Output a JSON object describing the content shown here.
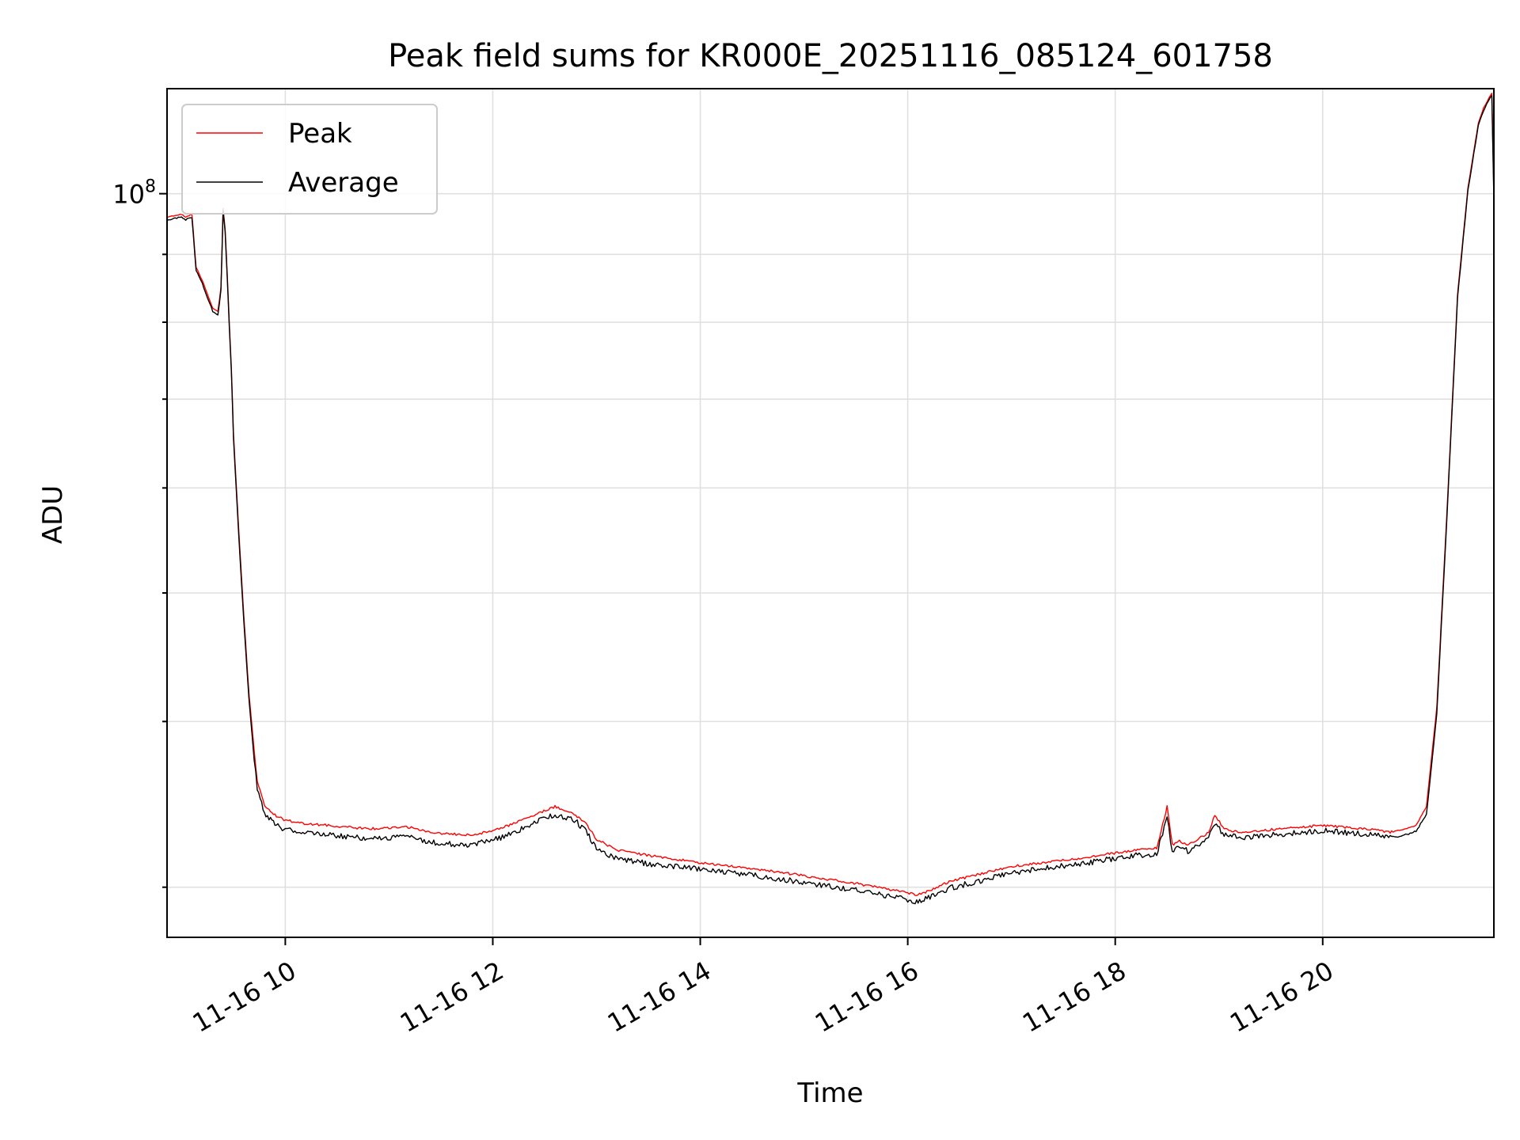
{
  "chart_data": {
    "type": "line",
    "title": "Peak field sums for KR000E_20251116_085124_601758",
    "xlabel": "Time",
    "ylabel": "ADU",
    "yscale": "log",
    "grid": true,
    "legend_position": "top-left",
    "x_unit": "hours on 2025-11-16",
    "xlim": [
      8.86,
      21.65
    ],
    "ylim": [
      27500000,
      120000000
    ],
    "x_ticks": [
      {
        "value": 10,
        "label": "11-16 10"
      },
      {
        "value": 12,
        "label": "11-16 12"
      },
      {
        "value": 14,
        "label": "11-16 14"
      },
      {
        "value": 16,
        "label": "11-16 16"
      },
      {
        "value": 18,
        "label": "11-16 18"
      },
      {
        "value": 20,
        "label": "11-16 20"
      }
    ],
    "y_major_ticks": [
      {
        "value": 100000000,
        "label_base": "10",
        "label_exp": "8"
      }
    ],
    "y_minor_ticks": [
      30000000,
      40000000,
      50000000,
      60000000,
      70000000,
      80000000,
      90000000
    ],
    "series": [
      {
        "name": "Peak",
        "color": "#ff0000",
        "x": [
          8.86,
          9.0,
          9.04,
          9.1,
          9.14,
          9.2,
          9.3,
          9.35,
          9.38,
          9.4,
          9.42,
          9.44,
          9.46,
          9.48,
          9.5,
          9.55,
          9.6,
          9.65,
          9.7,
          9.73,
          9.8,
          9.9,
          10.0,
          10.2,
          10.4,
          10.6,
          10.8,
          11.0,
          11.2,
          11.4,
          11.6,
          11.8,
          12.0,
          12.2,
          12.4,
          12.6,
          12.8,
          12.9,
          13.0,
          13.2,
          13.5,
          14.0,
          14.5,
          15.0,
          15.5,
          15.8,
          16.0,
          16.1,
          16.2,
          16.4,
          16.7,
          17.0,
          17.3,
          17.6,
          17.9,
          18.2,
          18.4,
          18.5,
          18.55,
          18.62,
          18.7,
          18.8,
          18.9,
          18.96,
          19.05,
          19.2,
          19.4,
          19.6,
          19.8,
          20.0,
          20.2,
          20.4,
          20.55,
          20.65,
          20.8,
          20.9,
          21.0,
          21.1,
          21.2,
          21.3,
          21.4,
          21.5,
          21.55,
          21.6,
          21.63,
          21.65
        ],
        "values": [
          96000000,
          96500000,
          96000000,
          96500000,
          88000000,
          86000000,
          82000000,
          81500000,
          85000000,
          97500000,
          94000000,
          87000000,
          80000000,
          74000000,
          66000000,
          56000000,
          48000000,
          42000000,
          38000000,
          36000000,
          34600000,
          34000000,
          33700000,
          33500000,
          33400000,
          33300000,
          33200000,
          33250000,
          33300000,
          33000000,
          32900000,
          32850000,
          33100000,
          33500000,
          34000000,
          34500000,
          34000000,
          33500000,
          32600000,
          32000000,
          31700000,
          31300000,
          31000000,
          30600000,
          30200000,
          29900000,
          29700000,
          29600000,
          29800000,
          30300000,
          30700000,
          31100000,
          31300000,
          31500000,
          31750000,
          32000000,
          32100000,
          34500000,
          32300000,
          32500000,
          32300000,
          32600000,
          33000000,
          34000000,
          33200000,
          33000000,
          33100000,
          33200000,
          33300000,
          33400000,
          33300000,
          33200000,
          33100000,
          33000000,
          33200000,
          33400000,
          34500000,
          41000000,
          58000000,
          84000000,
          101000000,
          113000000,
          116000000,
          118000000,
          119000000,
          100000000
        ]
      },
      {
        "name": "Average",
        "color": "#000000",
        "x": [
          8.86,
          9.0,
          9.04,
          9.1,
          9.14,
          9.2,
          9.3,
          9.35,
          9.38,
          9.4,
          9.42,
          9.44,
          9.46,
          9.48,
          9.5,
          9.55,
          9.6,
          9.65,
          9.7,
          9.73,
          9.8,
          9.9,
          10.0,
          10.2,
          10.4,
          10.6,
          10.8,
          11.0,
          11.2,
          11.4,
          11.6,
          11.8,
          12.0,
          12.2,
          12.4,
          12.6,
          12.8,
          12.9,
          13.0,
          13.2,
          13.5,
          14.0,
          14.5,
          15.0,
          15.5,
          15.8,
          16.0,
          16.1,
          16.2,
          16.4,
          16.7,
          17.0,
          17.3,
          17.6,
          17.9,
          18.2,
          18.4,
          18.5,
          18.55,
          18.62,
          18.7,
          18.8,
          18.9,
          18.96,
          19.05,
          19.2,
          19.4,
          19.6,
          19.8,
          20.0,
          20.2,
          20.4,
          20.55,
          20.65,
          20.8,
          20.9,
          21.0,
          21.1,
          21.2,
          21.3,
          21.4,
          21.5,
          21.55,
          21.6,
          21.63,
          21.65
        ],
        "values": [
          95500000,
          96000000,
          95500000,
          96000000,
          87500000,
          85500000,
          81500000,
          81000000,
          84500000,
          97000000,
          93500000,
          86500000,
          79500000,
          73500000,
          65500000,
          55500000,
          47500000,
          41500000,
          37500000,
          35500000,
          34000000,
          33400000,
          33100000,
          32900000,
          32800000,
          32700000,
          32600000,
          32650000,
          32700000,
          32400000,
          32300000,
          32250000,
          32500000,
          32900000,
          33500000,
          34000000,
          33600000,
          33000000,
          32000000,
          31500000,
          31200000,
          30900000,
          30600000,
          30200000,
          29800000,
          29500000,
          29300000,
          29200000,
          29400000,
          29900000,
          30300000,
          30700000,
          30950000,
          31150000,
          31400000,
          31650000,
          31750000,
          33800000,
          31900000,
          32100000,
          31900000,
          32200000,
          32600000,
          33500000,
          32800000,
          32650000,
          32750000,
          32850000,
          32950000,
          33050000,
          32950000,
          32850000,
          32750000,
          32650000,
          32850000,
          33050000,
          34000000,
          40500000,
          57500000,
          83500000,
          100500000,
          112500000,
          115500000,
          117500000,
          118500000,
          99000000
        ]
      }
    ]
  }
}
